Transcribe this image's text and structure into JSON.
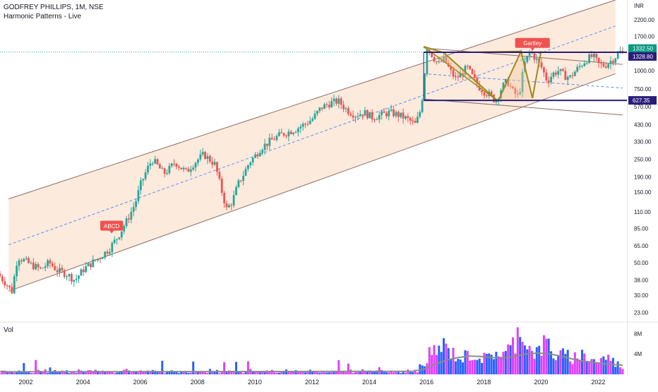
{
  "header": {
    "symbol_line": "GODFREY PHILLIPS, 1M, NSE",
    "indicator_line": "Harmonic Patterns - Live"
  },
  "volume_pane": {
    "label": "Vol"
  },
  "colors": {
    "bull": "#26a69a",
    "bear": "#ef5350",
    "channel_fill": "#fbe3d2",
    "channel_line": "#8d6e63",
    "harmonic": "#9c8a1e",
    "range_line": "#2a1d7a",
    "midline": "#5b8ff0",
    "vol_blue": "#2962ff",
    "vol_pink": "#e040fb",
    "vol_ma": "#8c8c8c",
    "pattern_label": "#ef5350"
  },
  "chart_data": {
    "type": "candlestick",
    "title": "GODFREY PHILLIPS, 1M, NSE",
    "y_axis": {
      "scale": "log",
      "unit": "INR",
      "range": [
        20,
        3000
      ],
      "tick_labels": [
        "2200.00",
        "1700.00",
        "1000.00",
        "750.00",
        "570.00",
        "430.00",
        "330.00",
        "250.00",
        "190.00",
        "150.00",
        "110.00",
        "85.00",
        "65.00",
        "50.00",
        "38.00",
        "30.00",
        "23.00"
      ],
      "tick_values": [
        2200,
        1700,
        1000,
        750,
        570,
        430,
        330,
        250,
        190,
        150,
        110,
        85,
        65,
        50,
        38,
        30,
        23
      ]
    },
    "x_axis": {
      "range": [
        2001.1,
        2023.0
      ],
      "tick_labels": [
        "2002",
        "2004",
        "2006",
        "2008",
        "2010",
        "2012",
        "2014",
        "2016",
        "2018",
        "2020",
        "2022"
      ],
      "tick_values": [
        2002,
        2004,
        2006,
        2008,
        2010,
        2012,
        2014,
        2016,
        2018,
        2020,
        2022
      ]
    },
    "price_tags": [
      {
        "value": 1332.5,
        "label": "1332.50",
        "color": "#089981"
      },
      {
        "value": 1328.8,
        "label": "1328.80",
        "color": "#2a1d7a"
      },
      {
        "value": 627.35,
        "label": "627.35",
        "color": "#2a1d7a"
      }
    ],
    "price_path": [
      [
        2001.1,
        42
      ],
      [
        2001.4,
        36
      ],
      [
        2001.6,
        32
      ],
      [
        2001.8,
        55
      ],
      [
        2002.0,
        52
      ],
      [
        2002.3,
        48
      ],
      [
        2002.6,
        45
      ],
      [
        2002.9,
        50
      ],
      [
        2003.2,
        44
      ],
      [
        2003.5,
        42
      ],
      [
        2003.8,
        38
      ],
      [
        2004.1,
        45
      ],
      [
        2004.4,
        50
      ],
      [
        2004.7,
        55
      ],
      [
        2005.0,
        62
      ],
      [
        2005.3,
        75
      ],
      [
        2005.6,
        95
      ],
      [
        2005.9,
        125
      ],
      [
        2006.1,
        170
      ],
      [
        2006.3,
        210
      ],
      [
        2006.5,
        250
      ],
      [
        2006.7,
        225
      ],
      [
        2006.9,
        200
      ],
      [
        2007.1,
        215
      ],
      [
        2007.3,
        240
      ],
      [
        2007.5,
        220
      ],
      [
        2007.7,
        205
      ],
      [
        2007.9,
        230
      ],
      [
        2008.1,
        250
      ],
      [
        2008.3,
        270
      ],
      [
        2008.5,
        250
      ],
      [
        2008.7,
        230
      ],
      [
        2008.9,
        160
      ],
      [
        2009.1,
        115
      ],
      [
        2009.3,
        130
      ],
      [
        2009.5,
        170
      ],
      [
        2009.7,
        200
      ],
      [
        2009.9,
        240
      ],
      [
        2010.1,
        265
      ],
      [
        2010.3,
        300
      ],
      [
        2010.6,
        330
      ],
      [
        2010.9,
        360
      ],
      [
        2011.2,
        380
      ],
      [
        2011.5,
        400
      ],
      [
        2011.8,
        430
      ],
      [
        2012.1,
        470
      ],
      [
        2012.4,
        560
      ],
      [
        2012.7,
        600
      ],
      [
        2013.0,
        620
      ],
      [
        2013.3,
        540
      ],
      [
        2013.6,
        500
      ],
      [
        2013.9,
        520
      ],
      [
        2014.2,
        480
      ],
      [
        2014.5,
        500
      ],
      [
        2014.8,
        520
      ],
      [
        2015.1,
        500
      ],
      [
        2015.4,
        470
      ],
      [
        2015.7,
        430
      ],
      [
        2015.9,
        560
      ],
      [
        2016.1,
        1450
      ],
      [
        2016.3,
        1250
      ],
      [
        2016.5,
        1100
      ],
      [
        2016.7,
        1200
      ],
      [
        2016.9,
        1000
      ],
      [
        2017.1,
        880
      ],
      [
        2017.3,
        950
      ],
      [
        2017.5,
        1050
      ],
      [
        2017.7,
        900
      ],
      [
        2017.9,
        780
      ],
      [
        2018.1,
        720
      ],
      [
        2018.3,
        680
      ],
      [
        2018.5,
        620
      ],
      [
        2018.7,
        760
      ],
      [
        2018.9,
        850
      ],
      [
        2019.1,
        720
      ],
      [
        2019.3,
        660
      ],
      [
        2019.5,
        1100
      ],
      [
        2019.7,
        1350
      ],
      [
        2019.9,
        1200
      ],
      [
        2020.1,
        1050
      ],
      [
        2020.3,
        850
      ],
      [
        2020.5,
        950
      ],
      [
        2020.7,
        1000
      ],
      [
        2020.9,
        920
      ],
      [
        2021.1,
        900
      ],
      [
        2021.3,
        1000
      ],
      [
        2021.5,
        1100
      ],
      [
        2021.7,
        1200
      ],
      [
        2021.9,
        1250
      ],
      [
        2022.1,
        1100
      ],
      [
        2022.3,
        1080
      ],
      [
        2022.5,
        1150
      ],
      [
        2022.7,
        1250
      ],
      [
        2022.85,
        1332.5
      ]
    ],
    "volume": {
      "label": "Vol",
      "tick_labels": [
        "8M",
        "4M"
      ],
      "tick_values": [
        8,
        4
      ],
      "unit": "M",
      "bars_approx": [
        [
          2016.0,
          3.5
        ],
        [
          2016.3,
          4.5
        ],
        [
          2016.6,
          5.5
        ],
        [
          2016.9,
          4.2
        ],
        [
          2017.2,
          3.0
        ],
        [
          2017.5,
          4.0
        ],
        [
          2017.8,
          3.5
        ],
        [
          2018.1,
          3.0
        ],
        [
          2018.4,
          4.5
        ],
        [
          2018.7,
          3.8
        ],
        [
          2019.0,
          5.5
        ],
        [
          2019.3,
          9.5
        ],
        [
          2019.6,
          5.0
        ],
        [
          2019.9,
          4.2
        ],
        [
          2020.2,
          6.5
        ],
        [
          2020.5,
          3.5
        ],
        [
          2020.8,
          3.8
        ],
        [
          2021.1,
          3.2
        ],
        [
          2021.4,
          4.0
        ],
        [
          2021.7,
          3.0
        ],
        [
          2022.0,
          2.5
        ],
        [
          2022.3,
          3.5
        ],
        [
          2022.6,
          2.2
        ],
        [
          2022.85,
          1.5
        ]
      ],
      "ma_approx": [
        [
          2001.1,
          0.5
        ],
        [
          2015.5,
          0.6
        ],
        [
          2015.9,
          1.0
        ],
        [
          2016.3,
          2.0
        ],
        [
          2016.7,
          2.8
        ],
        [
          2017.1,
          3.3
        ],
        [
          2017.5,
          3.6
        ],
        [
          2017.9,
          3.5
        ],
        [
          2018.3,
          3.3
        ],
        [
          2018.7,
          3.2
        ],
        [
          2019.1,
          3.6
        ],
        [
          2019.5,
          4.0
        ],
        [
          2019.9,
          4.2
        ],
        [
          2020.3,
          4.0
        ],
        [
          2020.7,
          3.6
        ],
        [
          2021.1,
          3.0
        ],
        [
          2021.5,
          2.6
        ],
        [
          2021.9,
          2.3
        ],
        [
          2022.3,
          2.0
        ],
        [
          2022.85,
          1.8
        ]
      ]
    },
    "annotations": [
      {
        "type": "label",
        "text": "ABCD",
        "x": 2005.0,
        "y": 88
      },
      {
        "type": "label",
        "text": "Gartley",
        "x": 2019.7,
        "y": 1520
      }
    ],
    "channel": {
      "upper": [
        [
          2001.4,
          135
        ],
        [
          2022.6,
          3000
        ]
      ],
      "lower": [
        [
          2001.4,
          32
        ],
        [
          2022.6,
          950
        ]
      ],
      "mid": [
        [
          2001.4,
          66
        ],
        [
          2022.6,
          1950
        ]
      ]
    },
    "harmonic_shape": [
      [
        2015.9,
        1450
      ],
      [
        2016.6,
        1320
      ],
      [
        2018.5,
        620
      ],
      [
        2019.3,
        1350
      ],
      [
        2019.7,
        650
      ],
      [
        2020.0,
        1350
      ]
    ]
  }
}
